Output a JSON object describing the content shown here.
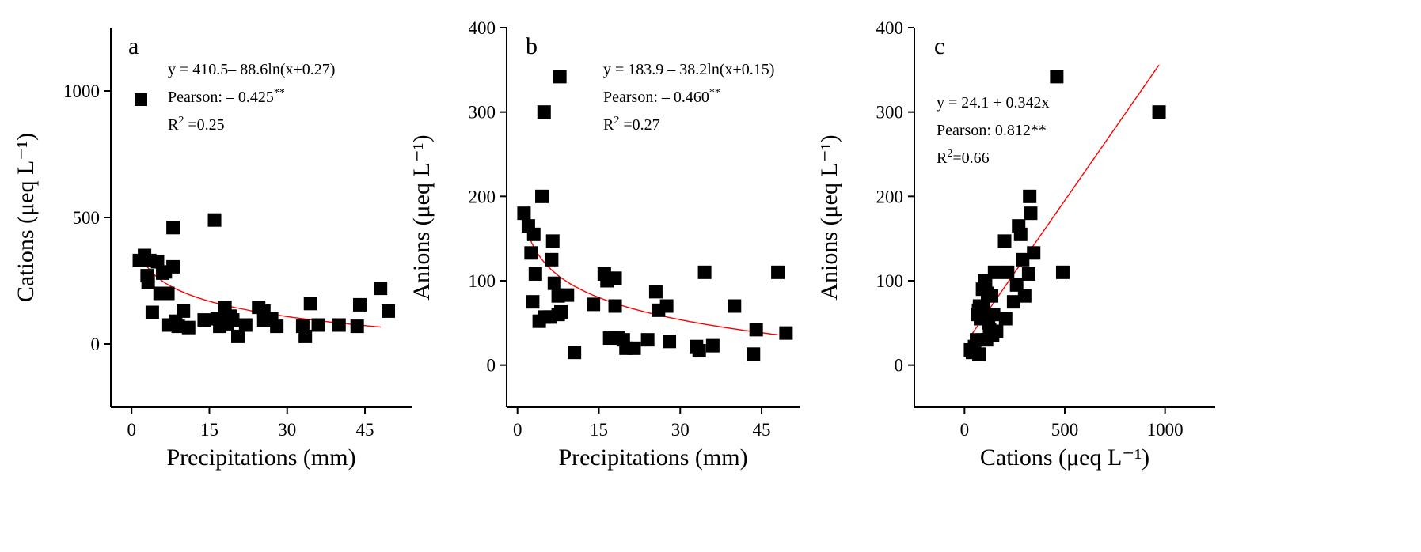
{
  "chart_data": [
    {
      "type": "scatter",
      "panel_label": "a",
      "xlabel": "Precipitations (mm)",
      "ylabel": "Cations (μeq L⁻¹)",
      "xlim": [
        -4,
        54
      ],
      "ylim": [
        -250,
        1250
      ],
      "xticks": [
        0,
        15,
        30,
        45
      ],
      "yticks": [
        0,
        500,
        1000
      ],
      "legend_marker": true,
      "annotation": [
        {
          "text": "y = 410.5– 88.6ln(x+0.27)",
          "sup": ""
        },
        {
          "text": "Pearson: – 0.425",
          "sup": "**"
        },
        {
          "text": "R",
          "sup": "2",
          "tail": " =0.25"
        }
      ],
      "fit": {
        "kind": "log",
        "a": 410.5,
        "b": -88.6,
        "c": 0.27,
        "x_range": [
          2,
          48
        ]
      },
      "points": [
        [
          1.5,
          330
        ],
        [
          2.5,
          350
        ],
        [
          3,
          270
        ],
        [
          3.2,
          245
        ],
        [
          3.5,
          330
        ],
        [
          4,
          125
        ],
        [
          5,
          325
        ],
        [
          5.5,
          200
        ],
        [
          6,
          280
        ],
        [
          6.5,
          285
        ],
        [
          7,
          200
        ],
        [
          7.2,
          75
        ],
        [
          8,
          305
        ],
        [
          8,
          460
        ],
        [
          8.5,
          90
        ],
        [
          9,
          70
        ],
        [
          10,
          130
        ],
        [
          11,
          65
        ],
        [
          14,
          95
        ],
        [
          16,
          490
        ],
        [
          16.5,
          100
        ],
        [
          17,
          70
        ],
        [
          18,
          145
        ],
        [
          18.5,
          80
        ],
        [
          19,
          110
        ],
        [
          19.5,
          95
        ],
        [
          20.5,
          30
        ],
        [
          22,
          75
        ],
        [
          24.5,
          145
        ],
        [
          25.5,
          130
        ],
        [
          25.5,
          95
        ],
        [
          27,
          100
        ],
        [
          28,
          70
        ],
        [
          33,
          70
        ],
        [
          33.5,
          30
        ],
        [
          34.5,
          160
        ],
        [
          36,
          75
        ],
        [
          40,
          75
        ],
        [
          43.5,
          70
        ],
        [
          44,
          155
        ],
        [
          48,
          220
        ],
        [
          49.5,
          130
        ]
      ]
    },
    {
      "type": "scatter",
      "panel_label": "b",
      "xlabel": "Precipitations (mm)",
      "ylabel": "Anions (μeq L⁻¹)",
      "xlim": [
        -2,
        52
      ],
      "ylim": [
        -50,
        400
      ],
      "xticks": [
        0,
        15,
        30,
        45
      ],
      "yticks": [
        0,
        100,
        200,
        300,
        400
      ],
      "legend_marker": false,
      "annotation": [
        {
          "text": "y = 183.9 – 38.2ln(x+0.15)",
          "sup": ""
        },
        {
          "text": "Pearson: – 0.460",
          "sup": "**"
        },
        {
          "text": "R",
          "sup": "2",
          "tail": " =0.27"
        }
      ],
      "fit": {
        "kind": "log",
        "a": 183.9,
        "b": -38.2,
        "c": 0.15,
        "x_range": [
          1.5,
          48
        ]
      },
      "points": [
        [
          1.2,
          180
        ],
        [
          2,
          165
        ],
        [
          2.5,
          133
        ],
        [
          2.8,
          75
        ],
        [
          3,
          155
        ],
        [
          3.3,
          108
        ],
        [
          4,
          52
        ],
        [
          4.5,
          200
        ],
        [
          4.9,
          300
        ],
        [
          5,
          57
        ],
        [
          6,
          57
        ],
        [
          6.3,
          125
        ],
        [
          6.5,
          147
        ],
        [
          6.8,
          97
        ],
        [
          7.5,
          60
        ],
        [
          7.5,
          82
        ],
        [
          7.8,
          342
        ],
        [
          8,
          63
        ],
        [
          9.2,
          83
        ],
        [
          10.5,
          15
        ],
        [
          14,
          72
        ],
        [
          16,
          108
        ],
        [
          16.5,
          100
        ],
        [
          17,
          32
        ],
        [
          18,
          103
        ],
        [
          18,
          70
        ],
        [
          18.5,
          32
        ],
        [
          19.5,
          30
        ],
        [
          20,
          20
        ],
        [
          21.5,
          20
        ],
        [
          24,
          30
        ],
        [
          25.5,
          87
        ],
        [
          26,
          65
        ],
        [
          27.5,
          70
        ],
        [
          28,
          28
        ],
        [
          33,
          22
        ],
        [
          33.5,
          17
        ],
        [
          34.5,
          110
        ],
        [
          36,
          23
        ],
        [
          40,
          70
        ],
        [
          43.5,
          13
        ],
        [
          44,
          42
        ],
        [
          48,
          110
        ],
        [
          49.5,
          38
        ]
      ]
    },
    {
      "type": "scatter",
      "panel_label": "c",
      "xlabel": "Cations (μeq L⁻¹)",
      "ylabel": "Anions (μeq L⁻¹)",
      "xlim": [
        -250,
        1250
      ],
      "ylim": [
        -50,
        400
      ],
      "xticks": [
        0,
        500,
        1000
      ],
      "yticks": [
        0,
        100,
        200,
        300,
        400
      ],
      "legend_marker": false,
      "annotation": [
        {
          "text": "y = 24.1 + 0.342x",
          "sup": ""
        },
        {
          "text": "Pearson: 0.812**",
          "sup": ""
        },
        {
          "text": "R",
          "sup": "2",
          "tail": "=0.66"
        }
      ],
      "fit": {
        "kind": "linear",
        "a": 24.1,
        "b": 0.342,
        "x_range": [
          30,
          970
        ]
      },
      "points": [
        [
          30,
          18
        ],
        [
          40,
          15
        ],
        [
          50,
          22
        ],
        [
          60,
          30
        ],
        [
          65,
          60
        ],
        [
          70,
          65
        ],
        [
          72,
          13
        ],
        [
          75,
          70
        ],
        [
          80,
          55
        ],
        [
          90,
          90
        ],
        [
          95,
          70
        ],
        [
          100,
          100
        ],
        [
          105,
          95
        ],
        [
          110,
          30
        ],
        [
          115,
          85
        ],
        [
          120,
          50
        ],
        [
          125,
          42
        ],
        [
          130,
          40
        ],
        [
          135,
          82
        ],
        [
          140,
          35
        ],
        [
          145,
          60
        ],
        [
          150,
          110
        ],
        [
          160,
          40
        ],
        [
          200,
          147
        ],
        [
          205,
          55
        ],
        [
          215,
          110
        ],
        [
          245,
          75
        ],
        [
          260,
          95
        ],
        [
          270,
          165
        ],
        [
          280,
          155
        ],
        [
          290,
          125
        ],
        [
          300,
          82
        ],
        [
          320,
          108
        ],
        [
          325,
          200
        ],
        [
          330,
          180
        ],
        [
          345,
          133
        ],
        [
          460,
          342
        ],
        [
          490,
          110
        ],
        [
          970,
          300
        ]
      ]
    }
  ]
}
